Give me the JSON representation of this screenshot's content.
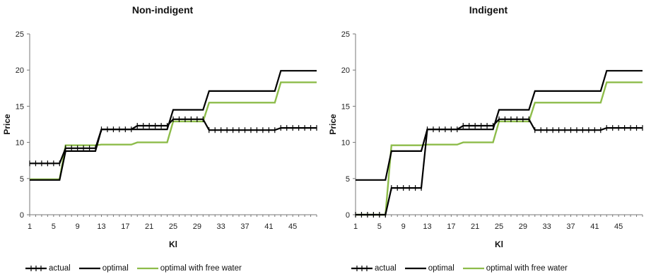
{
  "chart_data": [
    {
      "type": "line",
      "title": "Non-indigent",
      "xlabel": "Kl",
      "ylabel": "Price",
      "ylim": [
        0,
        25
      ],
      "yticks": [
        0,
        5,
        10,
        15,
        20,
        25
      ],
      "xlim": [
        1,
        49
      ],
      "xticks": [
        1,
        5,
        9,
        13,
        17,
        21,
        25,
        29,
        33,
        37,
        41,
        45
      ],
      "grid": false,
      "legend_position": "bottom",
      "series": [
        {
          "name": "actual",
          "color": "#000000",
          "marker": "plus",
          "segments": [
            {
              "x": [
                1,
                6
              ],
              "y": 7.1
            },
            {
              "x": [
                7,
                12
              ],
              "y": 9.2
            },
            {
              "x": [
                13,
                18
              ],
              "y": 11.8
            },
            {
              "x": [
                19,
                24
              ],
              "y": 12.3
            },
            {
              "x": [
                25,
                30
              ],
              "y": 13.2
            },
            {
              "x": [
                31,
                42
              ],
              "y": 11.7
            },
            {
              "x": [
                43,
                49
              ],
              "y": 12.0
            }
          ]
        },
        {
          "name": "optimal",
          "color": "#000000",
          "marker": "none",
          "segments": [
            {
              "x": [
                1,
                6
              ],
              "y": 4.8
            },
            {
              "x": [
                7,
                12
              ],
              "y": 8.8
            },
            {
              "x": [
                13,
                18
              ],
              "y": 11.8
            },
            {
              "x": [
                19,
                24
              ],
              "y": 11.8
            },
            {
              "x": [
                25,
                30
              ],
              "y": 14.5
            },
            {
              "x": [
                31,
                42
              ],
              "y": 17.1
            },
            {
              "x": [
                43,
                49
              ],
              "y": 19.9
            }
          ]
        },
        {
          "name": "optimal with free water",
          "color": "#8dbc4a",
          "marker": "none",
          "segments": [
            {
              "x": [
                1,
                6
              ],
              "y": 4.9
            },
            {
              "x": [
                7,
                12
              ],
              "y": 9.6
            },
            {
              "x": [
                13,
                18
              ],
              "y": 9.7
            },
            {
              "x": [
                19,
                24
              ],
              "y": 10.0
            },
            {
              "x": [
                25,
                30
              ],
              "y": 12.9
            },
            {
              "x": [
                31,
                42
              ],
              "y": 15.5
            },
            {
              "x": [
                43,
                49
              ],
              "y": 18.3
            }
          ]
        }
      ]
    },
    {
      "type": "line",
      "title": "Indigent",
      "xlabel": "Kl",
      "ylabel": "Price",
      "ylim": [
        0,
        25
      ],
      "yticks": [
        0,
        5,
        10,
        15,
        20,
        25
      ],
      "xlim": [
        1,
        49
      ],
      "xticks": [
        1,
        5,
        9,
        13,
        17,
        21,
        25,
        29,
        33,
        37,
        41,
        45
      ],
      "grid": false,
      "legend_position": "bottom",
      "series": [
        {
          "name": "actual",
          "color": "#000000",
          "marker": "plus",
          "segments": [
            {
              "x": [
                1,
                6
              ],
              "y": 0.0
            },
            {
              "x": [
                7,
                12
              ],
              "y": 3.7
            },
            {
              "x": [
                13,
                18
              ],
              "y": 11.8
            },
            {
              "x": [
                19,
                24
              ],
              "y": 12.3
            },
            {
              "x": [
                25,
                30
              ],
              "y": 13.2
            },
            {
              "x": [
                31,
                42
              ],
              "y": 11.7
            },
            {
              "x": [
                43,
                49
              ],
              "y": 12.0
            }
          ]
        },
        {
          "name": "optimal",
          "color": "#000000",
          "marker": "none",
          "segments": [
            {
              "x": [
                1,
                6
              ],
              "y": 4.8
            },
            {
              "x": [
                7,
                12
              ],
              "y": 8.8
            },
            {
              "x": [
                13,
                18
              ],
              "y": 11.8
            },
            {
              "x": [
                19,
                24
              ],
              "y": 11.8
            },
            {
              "x": [
                25,
                30
              ],
              "y": 14.5
            },
            {
              "x": [
                31,
                42
              ],
              "y": 17.1
            },
            {
              "x": [
                43,
                49
              ],
              "y": 19.9
            }
          ]
        },
        {
          "name": "optimal with free water",
          "color": "#8dbc4a",
          "marker": "none",
          "segments": [
            {
              "x": [
                1,
                6
              ],
              "y": 0.0
            },
            {
              "x": [
                7,
                12
              ],
              "y": 9.6
            },
            {
              "x": [
                13,
                18
              ],
              "y": 9.7
            },
            {
              "x": [
                19,
                24
              ],
              "y": 10.0
            },
            {
              "x": [
                25,
                30
              ],
              "y": 12.9
            },
            {
              "x": [
                31,
                42
              ],
              "y": 15.5
            },
            {
              "x": [
                43,
                49
              ],
              "y": 18.3
            }
          ]
        }
      ]
    }
  ]
}
